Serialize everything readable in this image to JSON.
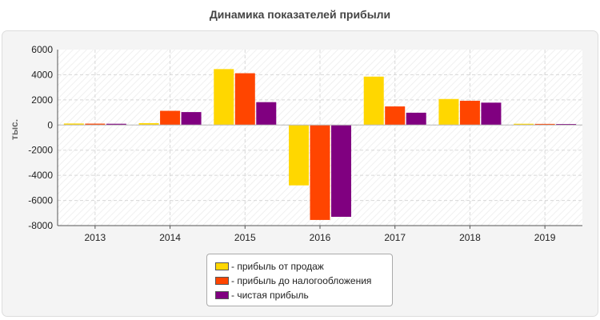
{
  "chart_data": {
    "type": "bar",
    "title": "Динамика показателей прибыли",
    "ylabel": "тыс.",
    "xlabel": "",
    "categories": [
      "2013",
      "2014",
      "2015",
      "2016",
      "2017",
      "2018",
      "2019"
    ],
    "ylim": [
      -8000,
      6000
    ],
    "yticks": [
      6000,
      4000,
      2000,
      0,
      -2000,
      -4000,
      -6000,
      -8000
    ],
    "grid": true,
    "legend_position": "bottom",
    "series": [
      {
        "name": "- прибыль от продаж",
        "color": "#FFD700",
        "values": [
          120,
          150,
          4450,
          -4800,
          3850,
          2070,
          100
        ]
      },
      {
        "name": "- прибыль до налогообложения",
        "color": "#FF4500",
        "values": [
          110,
          1130,
          4120,
          -7550,
          1480,
          1930,
          90
        ]
      },
      {
        "name": "- чистая прибыль",
        "color": "#800080",
        "values": [
          100,
          1030,
          1820,
          -7300,
          980,
          1780,
          80
        ]
      }
    ]
  }
}
